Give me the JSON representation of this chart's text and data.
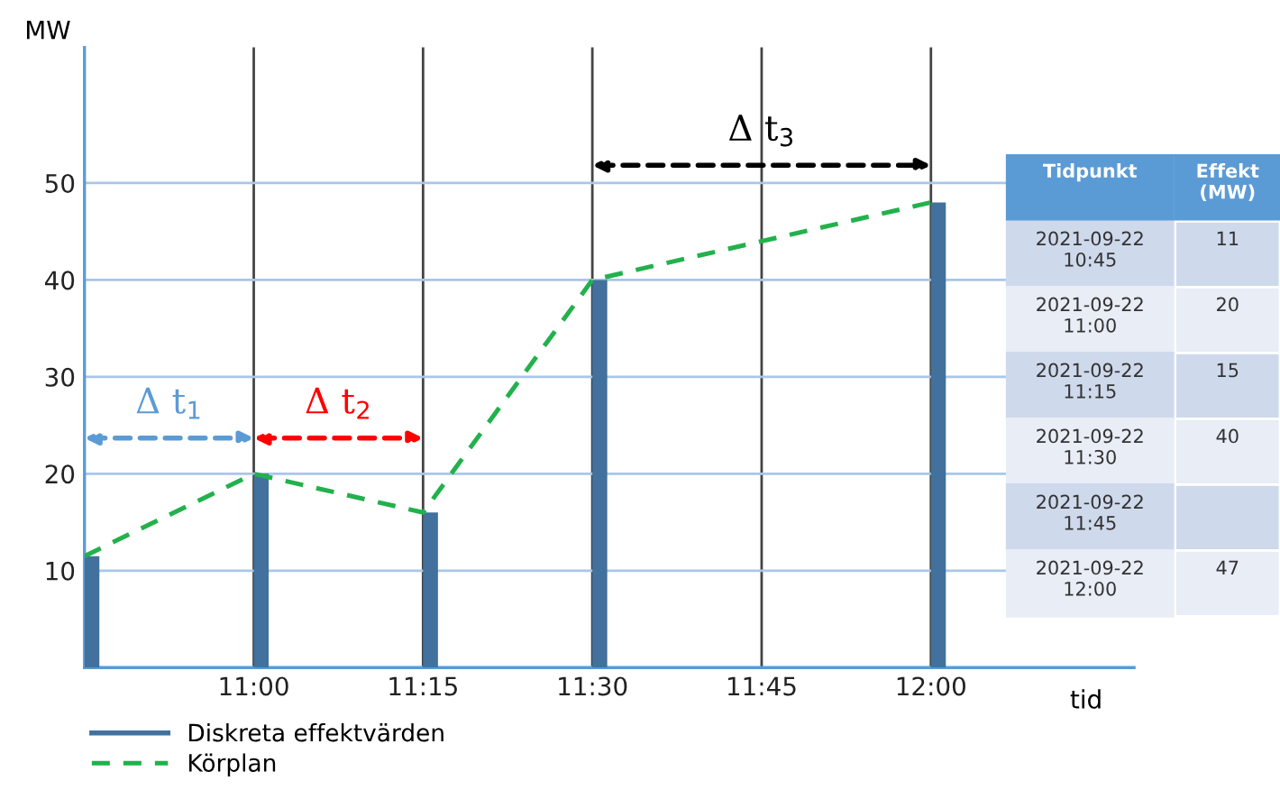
{
  "chart_data": [
    {
      "type": "bar",
      "xlabel": "tid",
      "ylabel": "MW",
      "x": [
        10.75,
        11,
        11.25,
        11.5,
        12
      ],
      "series": [
        {
          "name": "Diskreta effektvärden",
          "type": "bar",
          "color": "#41719c",
          "values": [
            11.5,
            20,
            16,
            40,
            48
          ]
        },
        {
          "name": "Körplan",
          "type": "line",
          "color": "#22b14c",
          "line_style": "dashed",
          "values": [
            11.5,
            20,
            16,
            40,
            48
          ]
        }
      ],
      "xlim": [
        10.75,
        12.3
      ],
      "ylim": [
        0,
        64
      ],
      "xticks": [
        {
          "value": 11,
          "label": "11:00"
        },
        {
          "value": 11.25,
          "label": "11:15"
        },
        {
          "value": 11.5,
          "label": "11:30"
        },
        {
          "value": 11.75,
          "label": "11:45"
        },
        {
          "value": 12,
          "label": "12:00"
        }
      ],
      "yticks": [
        10,
        20,
        30,
        40,
        50
      ],
      "grid": true,
      "legend": "bottom",
      "annotations": [
        "Δ t$_{1}$",
        "Δ t$_{2}$",
        "Δ t$_{3}$"
      ]
    },
    {
      "type": "heatmap",
      "ylabel": "Tidpunkt",
      "categories": [
        "Effekt\n(MW)"
      ],
      "y_categories": [
        "2021-09-22\n10:45",
        "2021-09-22\n11:00",
        "2021-09-22\n11:15",
        "2021-09-22\n11:30",
        "2021-09-22\n11:45",
        "2021-09-22\n12:00"
      ],
      "cells": [
        [
          11
        ],
        [
          20
        ],
        [
          15
        ],
        [
          40
        ],
        [
          null
        ],
        [
          47
        ]
      ],
      "data_labels": true
    }
  ]
}
